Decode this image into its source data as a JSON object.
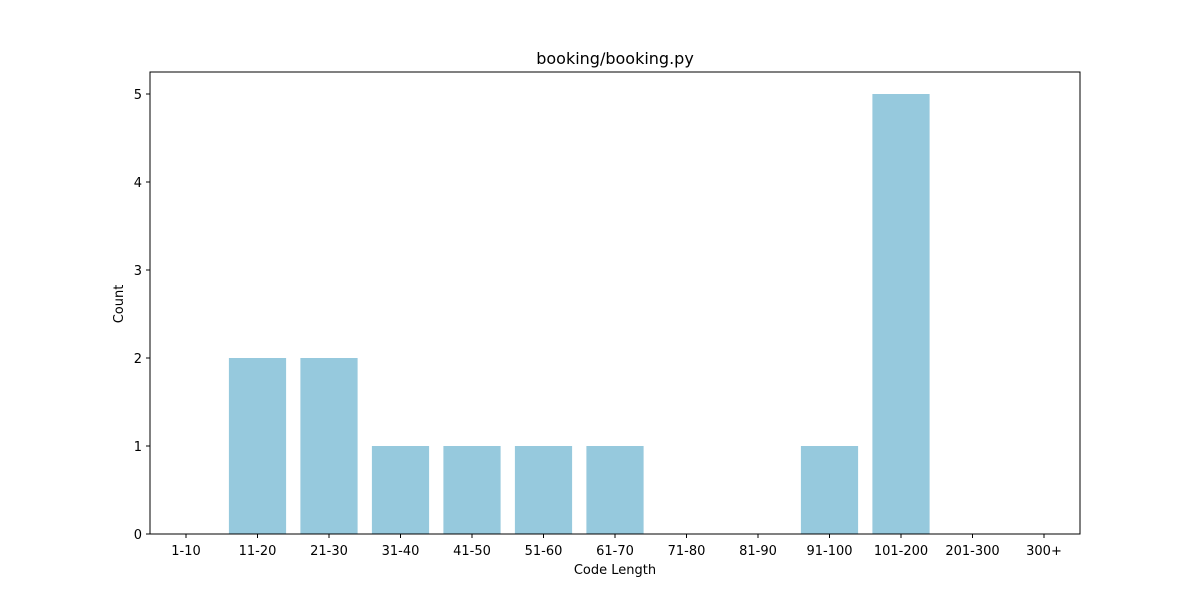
{
  "chart_data": {
    "type": "bar",
    "title": "booking/booking.py",
    "xlabel": "Code Length",
    "ylabel": "Count",
    "categories": [
      "1-10",
      "11-20",
      "21-30",
      "31-40",
      "41-50",
      "51-60",
      "61-70",
      "71-80",
      "81-90",
      "91-100",
      "101-200",
      "201-300",
      "300+"
    ],
    "values": [
      0,
      2,
      2,
      1,
      1,
      1,
      1,
      0,
      0,
      1,
      5,
      0,
      0
    ],
    "ylim": [
      0,
      5.25
    ],
    "yticks": [
      0,
      1,
      2,
      3,
      4,
      5
    ],
    "grid": false,
    "bar_color": "#96c9dd"
  }
}
